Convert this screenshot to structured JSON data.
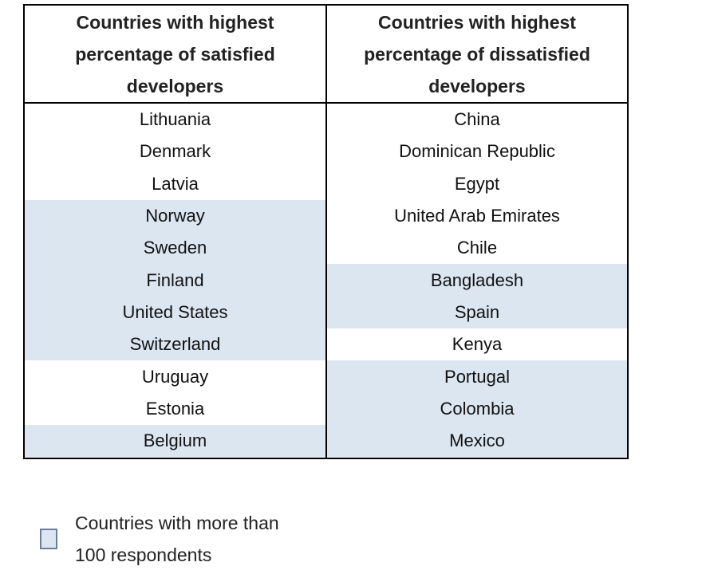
{
  "chart_data": {
    "type": "table",
    "columns": [
      {
        "header": "Countries with highest percentage of satisfied developers",
        "rows": [
          {
            "country": "Lithuania",
            "highlighted": false
          },
          {
            "country": "Denmark",
            "highlighted": false
          },
          {
            "country": "Latvia",
            "highlighted": false
          },
          {
            "country": "Norway",
            "highlighted": true
          },
          {
            "country": "Sweden",
            "highlighted": true
          },
          {
            "country": "Finland",
            "highlighted": true
          },
          {
            "country": "United States",
            "highlighted": true
          },
          {
            "country": "Switzerland",
            "highlighted": true
          },
          {
            "country": "Uruguay",
            "highlighted": false
          },
          {
            "country": "Estonia",
            "highlighted": false
          },
          {
            "country": "Belgium",
            "highlighted": true
          }
        ]
      },
      {
        "header": "Countries with highest percentage of dissatisfied developers",
        "rows": [
          {
            "country": "China",
            "highlighted": false
          },
          {
            "country": "Dominican Republic",
            "highlighted": false
          },
          {
            "country": "Egypt",
            "highlighted": false
          },
          {
            "country": "United Arab Emirates",
            "highlighted": false
          },
          {
            "country": "Chile",
            "highlighted": false
          },
          {
            "country": "Bangladesh",
            "highlighted": true
          },
          {
            "country": "Spain",
            "highlighted": true
          },
          {
            "country": "Kenya",
            "highlighted": false
          },
          {
            "country": "Portugal",
            "highlighted": true
          },
          {
            "country": "Colombia",
            "highlighted": true
          },
          {
            "country": "Mexico",
            "highlighted": true
          }
        ]
      }
    ],
    "legend": {
      "label": "Countries with more than 100 respondents",
      "color": "#dce6f1"
    }
  }
}
